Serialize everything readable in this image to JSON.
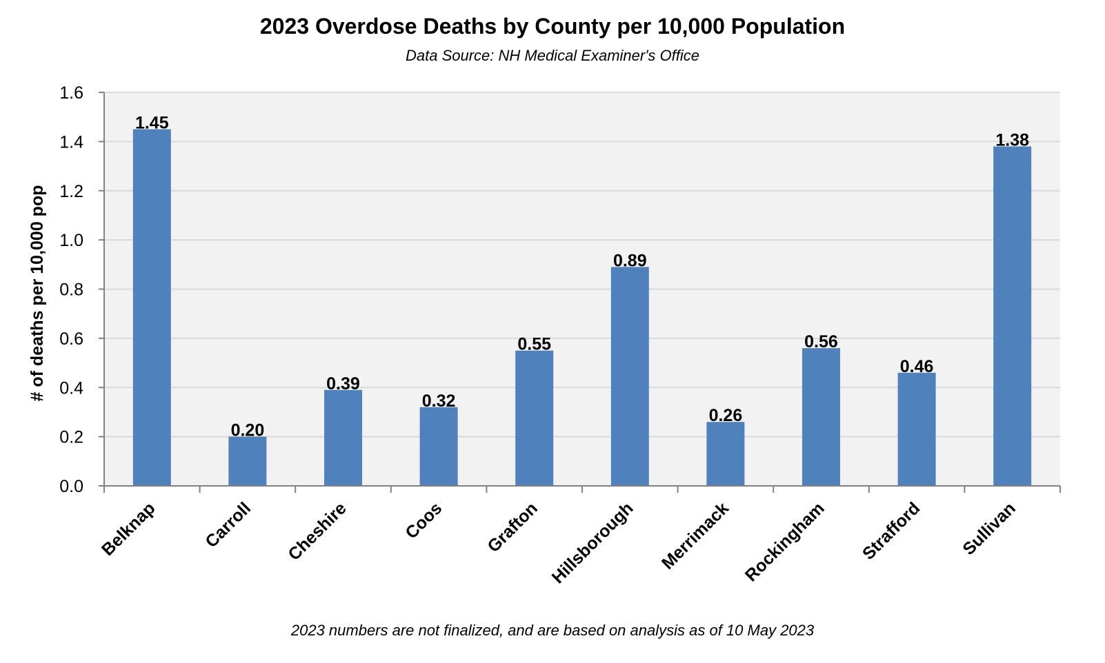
{
  "chart_data": {
    "type": "bar",
    "title": "2023 Overdose Deaths by County per 10,000 Population",
    "subtitle": "Data Source: NH Medical Examiner's Office",
    "footnote": "2023 numbers are not finalized, and are based on analysis as of 10 May 2023",
    "xlabel": "",
    "ylabel": "# of deaths per 10,000 pop",
    "categories": [
      "Belknap",
      "Carroll",
      "Cheshire",
      "Coos",
      "Grafton",
      "Hillsborough",
      "Merrimack",
      "Rockingham",
      "Strafford",
      "Sullivan"
    ],
    "values": [
      1.45,
      0.2,
      0.39,
      0.32,
      0.55,
      0.89,
      0.26,
      0.56,
      0.46,
      1.38
    ],
    "data_labels": [
      "1.45",
      "0.20",
      "0.39",
      "0.32",
      "0.55",
      "0.89",
      "0.26",
      "0.56",
      "0.46",
      "1.38"
    ],
    "ylim": [
      0,
      1.6
    ],
    "yticks": [
      "0.0",
      "0.2",
      "0.4",
      "0.6",
      "0.8",
      "1.0",
      "1.2",
      "1.4",
      "1.6"
    ],
    "grid": true,
    "legend": "none",
    "colors": {
      "bar": "#4F81BD",
      "plot_background": "#F2F2F2",
      "gridline": "#D9D9D9",
      "axis": "#808080"
    }
  }
}
